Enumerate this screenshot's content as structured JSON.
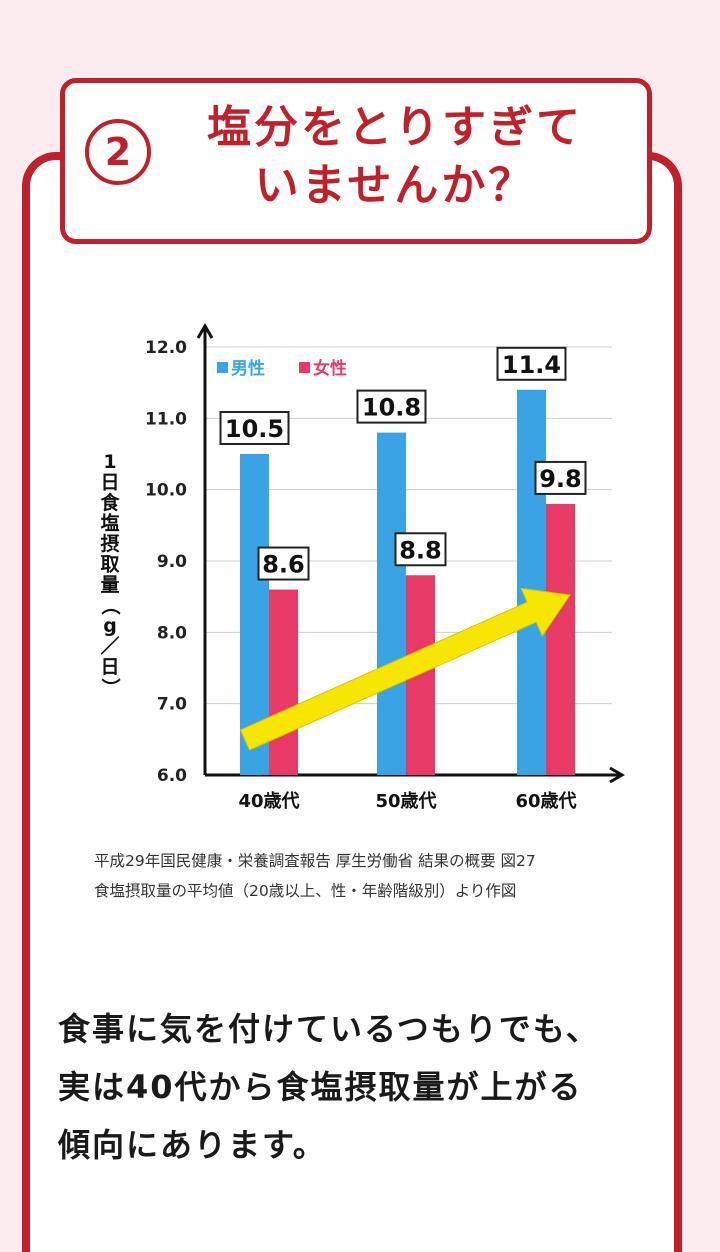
{
  "header": {
    "number": "2",
    "title_line1": "塩分をとりすぎて",
    "title_line2": "いませんか？"
  },
  "chart_data": {
    "type": "bar",
    "categories": [
      "40歳代",
      "50歳代",
      "60歳代"
    ],
    "series": [
      {
        "name": "男性",
        "values": [
          10.5,
          10.8,
          11.4
        ],
        "color": "#3aa3e3"
      },
      {
        "name": "女性",
        "values": [
          8.6,
          8.8,
          9.8
        ],
        "color": "#e83a66"
      }
    ],
    "ylabel": "1日食塩摂取量（g／日）",
    "ylim": [
      6.0,
      12.0
    ],
    "yticks": [
      "6.0",
      "7.0",
      "8.0",
      "9.0",
      "10.0",
      "11.0",
      "12.0"
    ],
    "grid": true,
    "legend": "top-left",
    "trend_arrow_color": "#f7e600"
  },
  "source": {
    "line1": "平成29年国民健康・栄養調査報告 厚生労働省 結果の概要 図27",
    "line2": "食塩摂取量の平均値（20歳以上、性・年齢階級別）より作図"
  },
  "body": {
    "line1": "食事に気を付けているつもりでも、",
    "line2": "実は40代から食塩摂取量が上がる",
    "line3": "傾向にあります。"
  }
}
